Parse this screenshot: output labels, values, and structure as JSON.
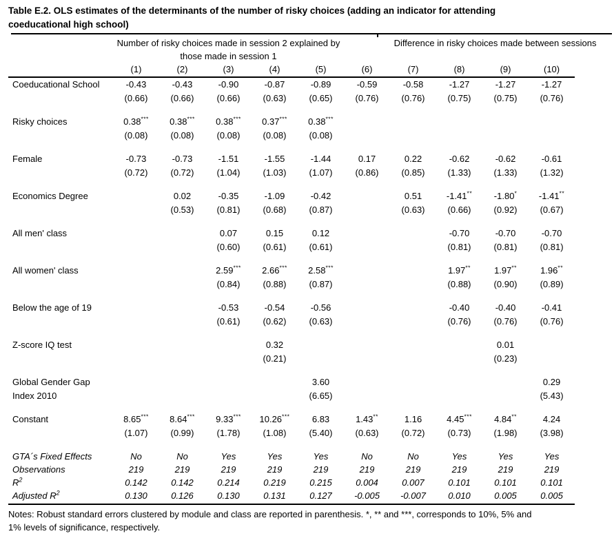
{
  "title": "Table E.2. OLS estimates of the determinants of the number of risky choices (adding an indicator for attending coeducational high school)",
  "header": {
    "group1": "Number of risky choices made in session 2 explained by those made in session 1",
    "group2": "Difference in risky choices made between sessions",
    "columns": [
      "(1)",
      "(2)",
      "(3)",
      "(4)",
      "(5)",
      "(6)",
      "(7)",
      "(8)",
      "(9)",
      "(10)"
    ]
  },
  "rows": [
    {
      "label": "Coeducational School",
      "label2": "",
      "coef": [
        "-0.43",
        "-0.43",
        "-0.90",
        "-0.87",
        "-0.89",
        "-0.59",
        "-0.58",
        "-1.27",
        "-1.27",
        "-1.27"
      ],
      "stars": [
        "",
        "",
        "",
        "",
        "",
        "",
        "",
        "",
        "",
        ""
      ],
      "se": [
        "(0.66)",
        "(0.66)",
        "(0.66)",
        "(0.63)",
        "(0.65)",
        "(0.76)",
        "(0.76)",
        "(0.75)",
        "(0.75)",
        "(0.76)"
      ]
    },
    {
      "label": "Risky choices",
      "label2": "",
      "coef": [
        "0.38",
        "0.38",
        "0.38",
        "0.37",
        "0.38",
        "",
        "",
        "",
        "",
        ""
      ],
      "stars": [
        "***",
        "***",
        "***",
        "***",
        "***",
        "",
        "",
        "",
        "",
        ""
      ],
      "se": [
        "(0.08)",
        "(0.08)",
        "(0.08)",
        "(0.08)",
        "(0.08)",
        "",
        "",
        "",
        "",
        ""
      ]
    },
    {
      "label": "Female",
      "label2": "",
      "coef": [
        "-0.73",
        "-0.73",
        "-1.51",
        "-1.55",
        "-1.44",
        "0.17",
        "0.22",
        "-0.62",
        "-0.62",
        "-0.61"
      ],
      "stars": [
        "",
        "",
        "",
        "",
        "",
        "",
        "",
        "",
        "",
        ""
      ],
      "se": [
        "(0.72)",
        "(0.72)",
        "(1.04)",
        "(1.03)",
        "(1.07)",
        "(0.86)",
        "(0.85)",
        "(1.33)",
        "(1.33)",
        "(1.32)"
      ]
    },
    {
      "label": "Economics Degree",
      "label2": "",
      "coef": [
        "",
        "0.02",
        "-0.35",
        "-1.09",
        "-0.42",
        "",
        "0.51",
        "-1.41",
        "-1.80",
        "-1.41"
      ],
      "stars": [
        "",
        "",
        "",
        "",
        "",
        "",
        "",
        "**",
        "*",
        "**"
      ],
      "se": [
        "",
        "(0.53)",
        "(0.81)",
        "(0.68)",
        "(0.87)",
        "",
        "(0.63)",
        "(0.66)",
        "(0.92)",
        "(0.67)"
      ]
    },
    {
      "label": "All men' class",
      "label2": "",
      "coef": [
        "",
        "",
        "0.07",
        "0.15",
        "0.12",
        "",
        "",
        "-0.70",
        "-0.70",
        "-0.70"
      ],
      "stars": [
        "",
        "",
        "",
        "",
        "",
        "",
        "",
        "",
        "",
        ""
      ],
      "se": [
        "",
        "",
        "(0.60)",
        "(0.61)",
        "(0.61)",
        "",
        "",
        "(0.81)",
        "(0.81)",
        "(0.81)"
      ]
    },
    {
      "label": "All women' class",
      "label2": "",
      "coef": [
        "",
        "",
        "2.59",
        "2.66",
        "2.58",
        "",
        "",
        "1.97",
        "1.97",
        "1.96"
      ],
      "stars": [
        "",
        "",
        "***",
        "***",
        "***",
        "",
        "",
        "**",
        "**",
        "**"
      ],
      "se": [
        "",
        "",
        "(0.84)",
        "(0.88)",
        "(0.87)",
        "",
        "",
        "(0.88)",
        "(0.90)",
        "(0.89)"
      ]
    },
    {
      "label": "Below the age of 19",
      "label2": "",
      "coef": [
        "",
        "",
        "-0.53",
        "-0.54",
        "-0.56",
        "",
        "",
        "-0.40",
        "-0.40",
        "-0.41"
      ],
      "stars": [
        "",
        "",
        "",
        "",
        "",
        "",
        "",
        "",
        "",
        ""
      ],
      "se": [
        "",
        "",
        "(0.61)",
        "(0.62)",
        "(0.63)",
        "",
        "",
        "(0.76)",
        "(0.76)",
        "(0.76)"
      ]
    },
    {
      "label": "Z-score IQ test",
      "label2": "",
      "coef": [
        "",
        "",
        "",
        "0.32",
        "",
        "",
        "",
        "",
        "0.01",
        ""
      ],
      "stars": [
        "",
        "",
        "",
        "",
        "",
        "",
        "",
        "",
        "",
        ""
      ],
      "se": [
        "",
        "",
        "",
        "(0.21)",
        "",
        "",
        "",
        "",
        "(0.23)",
        ""
      ]
    },
    {
      "label": "Global Gender Gap",
      "label2": "Index 2010",
      "coef": [
        "",
        "",
        "",
        "",
        "3.60",
        "",
        "",
        "",
        "",
        "0.29"
      ],
      "stars": [
        "",
        "",
        "",
        "",
        "",
        "",
        "",
        "",
        "",
        ""
      ],
      "se": [
        "",
        "",
        "",
        "",
        "(6.65)",
        "",
        "",
        "",
        "",
        "(5.43)"
      ]
    },
    {
      "label": "Constant",
      "label2": "",
      "coef": [
        "8.65",
        "8.64",
        "9.33",
        "10.26",
        "6.83",
        "1.43",
        "1.16",
        "4.45",
        "4.84",
        "4.24"
      ],
      "stars": [
        "***",
        "***",
        "***",
        "***",
        "",
        "**",
        "",
        "***",
        "**",
        ""
      ],
      "se": [
        "(1.07)",
        "(0.99)",
        "(1.78)",
        "(1.08)",
        "(5.40)",
        "(0.63)",
        "(0.72)",
        "(0.73)",
        "(1.98)",
        "(3.98)"
      ]
    }
  ],
  "stats": [
    {
      "label": "GTA´s Fixed Effects",
      "sup": "",
      "values": [
        "No",
        "No",
        "Yes",
        "Yes",
        "Yes",
        "No",
        "No",
        "Yes",
        "Yes",
        "Yes"
      ]
    },
    {
      "label": "Observations",
      "sup": "",
      "values": [
        "219",
        "219",
        "219",
        "219",
        "219",
        "219",
        "219",
        "219",
        "219",
        "219"
      ]
    },
    {
      "label": "R",
      "sup": "2",
      "values": [
        "0.142",
        "0.142",
        "0.214",
        "0.219",
        "0.215",
        "0.004",
        "0.007",
        "0.101",
        "0.101",
        "0.101"
      ]
    },
    {
      "label": "Adjusted R",
      "sup": "2",
      "values": [
        "0.130",
        "0.126",
        "0.130",
        "0.131",
        "0.127",
        "-0.005",
        "-0.007",
        "0.010",
        "0.005",
        "0.005"
      ]
    }
  ],
  "notes": "Notes: Robust standard errors clustered by module and class are reported in parenthesis. *, ** and ***, corresponds to 10%, 5% and 1% levels of significance, respectively."
}
